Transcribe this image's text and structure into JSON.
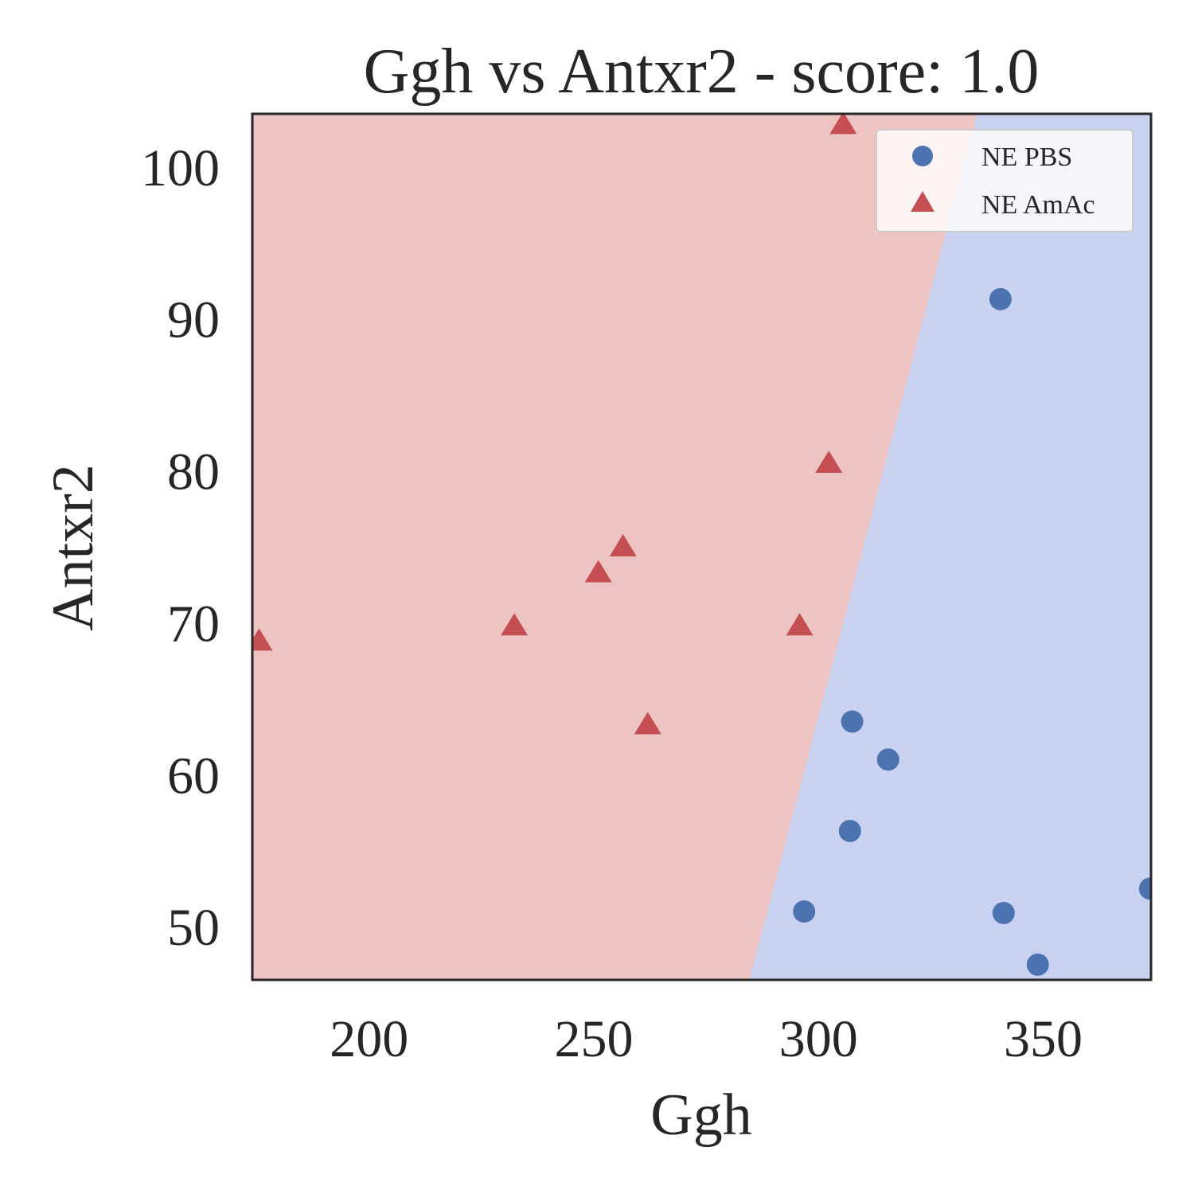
{
  "chart_data": {
    "type": "scatter",
    "title": "Ggh vs Antxr2 - score: 1.0",
    "xlabel": "Ggh",
    "ylabel": "Antxr2",
    "xlim": [
      174,
      374
    ],
    "ylim": [
      46.5,
      103.5
    ],
    "xticks": [
      200,
      250,
      300,
      350
    ],
    "yticks": [
      50,
      60,
      70,
      80,
      90,
      100
    ],
    "grid": false,
    "legend_position": "top-right",
    "colors": {
      "pbs": "#4c72b0",
      "amac": "#c44e52",
      "region_pbs": "#c9d2f1",
      "region_amac": "#edc4c2",
      "frame": "#262626"
    },
    "decision_boundary": [
      [
        284.6,
        46.5
      ],
      [
        335.3,
        103.5
      ]
    ],
    "series": [
      {
        "name": "NE PBS",
        "marker": "circle",
        "points": [
          [
            340.5,
            91.3
          ],
          [
            307.5,
            63.5
          ],
          [
            315.5,
            61.0
          ],
          [
            307.0,
            56.3
          ],
          [
            296.8,
            51.0
          ],
          [
            341.2,
            50.9
          ],
          [
            348.8,
            47.5
          ],
          [
            373.8,
            52.5
          ]
        ]
      },
      {
        "name": "NE AmAc",
        "marker": "triangle",
        "points": [
          [
            305.5,
            102.8
          ],
          [
            302.3,
            80.5
          ],
          [
            256.5,
            75.0
          ],
          [
            251.0,
            73.3
          ],
          [
            232.3,
            69.8
          ],
          [
            295.8,
            69.8
          ],
          [
            262.0,
            63.3
          ],
          [
            175.5,
            68.8
          ]
        ]
      }
    ]
  }
}
